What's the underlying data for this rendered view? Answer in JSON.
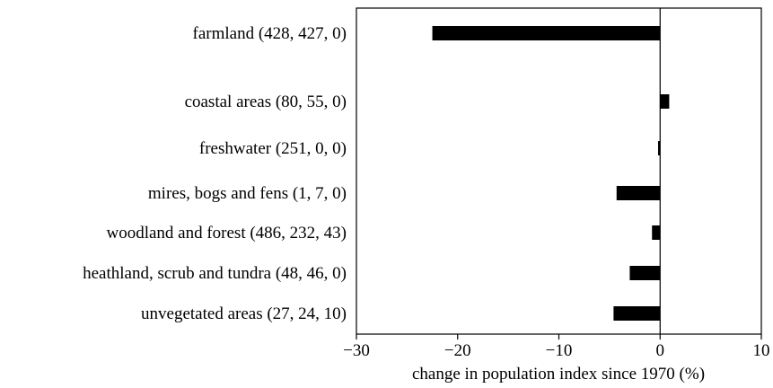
{
  "chart_data": {
    "type": "bar",
    "orientation": "horizontal",
    "title": "",
    "xlabel": "change in population index since 1970 (%)",
    "ylabel": "",
    "xlim": [
      -30,
      10
    ],
    "xticks": [
      -30,
      -20,
      -10,
      0,
      10
    ],
    "xtick_labels": [
      "−30",
      "−20",
      "−10",
      "0",
      "10"
    ],
    "grid": false,
    "bar_color": "#000000",
    "categories": [
      "farmland (428, 427, 0)",
      "coastal areas (80, 55, 0)",
      "freshwater (251, 0, 0)",
      "mires, bogs and fens (1, 7, 0)",
      "woodland and forest (486, 232, 43)",
      "heathland, scrub and tundra (48, 46, 0)",
      "unvegetated areas (27, 24, 10)"
    ],
    "values": [
      -22.5,
      0.9,
      -0.2,
      -4.3,
      -0.8,
      -3.0,
      -4.6
    ]
  }
}
